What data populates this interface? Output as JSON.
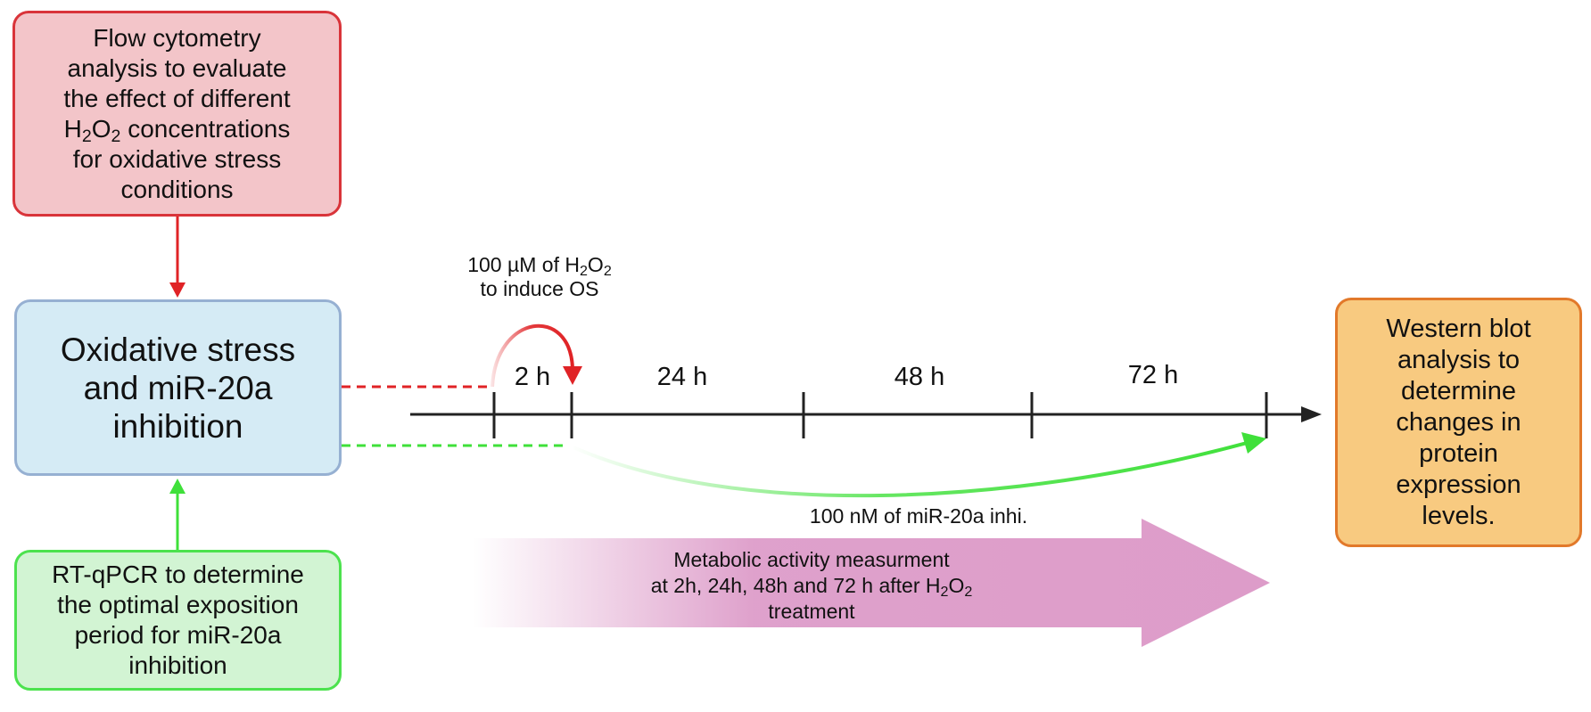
{
  "boxes": {
    "flow": "Flow cytometry\nanalysis to evaluate\nthe effect of different",
    "flow_chem_main": "H",
    "flow_chem_sub1": "2",
    "flow_chem_mid": "O",
    "flow_chem_sub2": "2",
    "flow_chem_tail": " concentrations",
    "flow_rest": "for oxidative stress\nconditions",
    "oxidative": "Oxidative stress\nand miR-20a\ninhibition",
    "rtqpcr": "RT-qPCR to determine\nthe optimal exposition\nperiod for miR-20a\ninhibition",
    "western": "Western blot\nanalysis to\ndetermine\nchanges in\nprotein\nexpression\nlevels."
  },
  "timeline": {
    "ticks": [
      "2 h",
      "24 h",
      "48 h",
      "72 h"
    ]
  },
  "annotations": {
    "h2o2_line1_pre": "100 µM of H",
    "h2o2_sub1": "2",
    "h2o2_mid": "O",
    "h2o2_sub2": "2",
    "h2o2_line2": "to induce OS",
    "mirna": "100 nM of miR-20a inhi."
  },
  "metabolic": {
    "line1": "Metabolic activity measurment",
    "line2_pre": "at 2h, 24h, 48h and 72 h after H",
    "line2_sub1": "2",
    "line2_mid": "O",
    "line2_sub2": "2",
    "line3": "treatment"
  },
  "colors": {
    "red": "#e02326",
    "green": "#3fe03a",
    "pink": "#dd9cc9",
    "timeline": "#222222"
  }
}
